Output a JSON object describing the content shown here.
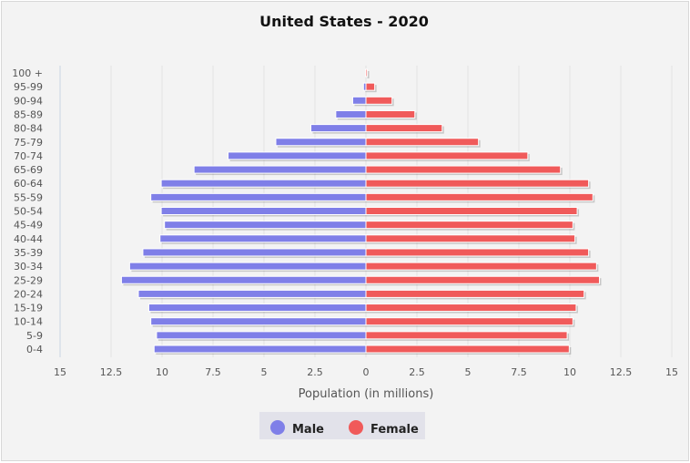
{
  "chart_data": {
    "type": "bar",
    "orientation": "horizontal",
    "subtype": "population-pyramid",
    "title": "United States - 2020",
    "xlabel": "Population (in millions)",
    "ylabel": "",
    "xlim": [
      -15,
      15
    ],
    "xticks": [
      15,
      12.5,
      10,
      7.5,
      5,
      2.5,
      0,
      2.5,
      5,
      7.5,
      10,
      12.5,
      15
    ],
    "grid": true,
    "legend_position": "bottom",
    "categories": [
      "100 +",
      "95-99",
      "90-94",
      "85-89",
      "80-84",
      "75-79",
      "70-74",
      "65-69",
      "60-64",
      "55-59",
      "50-54",
      "45-49",
      "40-44",
      "35-39",
      "30-34",
      "25-29",
      "20-24",
      "15-19",
      "10-14",
      "5-9",
      "0-4"
    ],
    "series": [
      {
        "name": "Male",
        "color": "#7f7fe8",
        "side": "left",
        "values": [
          0.02,
          0.12,
          0.65,
          1.48,
          2.7,
          4.42,
          6.76,
          8.43,
          10.04,
          10.55,
          10.04,
          9.88,
          10.1,
          10.94,
          11.59,
          11.99,
          11.16,
          10.65,
          10.55,
          10.27,
          10.39
        ]
      },
      {
        "name": "Female",
        "color": "#f05a5a",
        "side": "right",
        "values": [
          0.07,
          0.43,
          1.28,
          2.4,
          3.74,
          5.52,
          7.94,
          9.54,
          10.92,
          11.13,
          10.36,
          10.15,
          10.25,
          10.92,
          11.31,
          11.45,
          10.7,
          10.31,
          10.15,
          9.87,
          9.97
        ]
      }
    ]
  }
}
